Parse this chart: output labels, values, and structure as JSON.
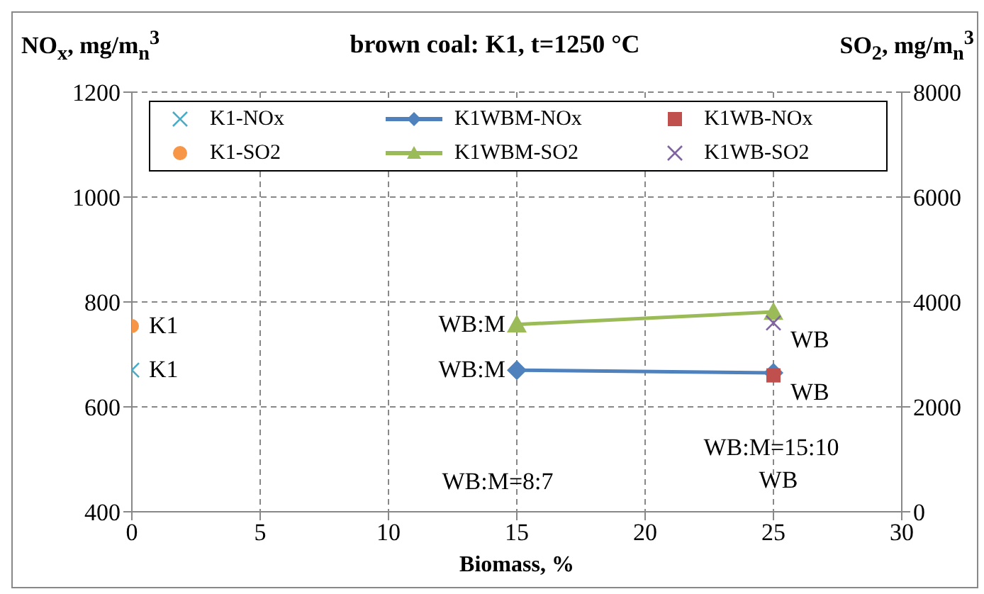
{
  "chart_data": {
    "type": "scatter",
    "title": "brown coal: K1, t=1250 °C",
    "xlabel": "Biomass, %",
    "ylabel": "NO$_{x}$, mg/m$_{n}$$^{3}$",
    "y2label": "SO$_{2}$, mg/m$_{n}$$^{3}$",
    "xlim": [
      0,
      30
    ],
    "xticks": [
      0,
      5,
      10,
      15,
      20,
      25,
      30
    ],
    "ylim": [
      400,
      1200
    ],
    "yticks": [
      400,
      600,
      800,
      1000,
      1200
    ],
    "y2lim": [
      0,
      8000
    ],
    "y2ticks": [
      0,
      2000,
      4000,
      6000,
      8000
    ],
    "grid": true,
    "legend": "top",
    "series": [
      {
        "name": "K1-NOx",
        "marker": "cross",
        "color": "#4bacc6",
        "x": [
          0
        ],
        "values": [
          670
        ]
      },
      {
        "name": "K1WBM-NOx",
        "type": "line",
        "marker": "diamond",
        "color": "#4f81bd",
        "x": [
          15,
          25
        ],
        "values": [
          670,
          665
        ]
      },
      {
        "name": "K1WB-NOx",
        "marker": "square",
        "color": "#c0504d",
        "x": [
          25
        ],
        "values": [
          660
        ]
      },
      {
        "name": "K1-SO2",
        "marker": "circle",
        "color": "#f79646",
        "axis": "y2",
        "x": [
          0
        ],
        "values": [
          3540
        ]
      },
      {
        "name": "K1WBM-SO2",
        "type": "line",
        "marker": "triangle",
        "color": "#9bbb59",
        "axis": "y2",
        "x": [
          15,
          25
        ],
        "values": [
          3570,
          3810
        ]
      },
      {
        "name": "K1WB-SO2",
        "marker": "cross",
        "color": "#8064a2",
        "axis": "y2",
        "x": [
          25
        ],
        "values": [
          3600
        ]
      }
    ],
    "annotations": [
      {
        "text": "K1",
        "x": 0,
        "y": 754
      },
      {
        "text": "K1",
        "x": 0,
        "y": 670
      },
      {
        "text": "WB:M",
        "x": 15,
        "y": 757
      },
      {
        "text": "WB:M",
        "x": 15,
        "y": 670
      },
      {
        "text": "WB",
        "x": 25,
        "y": 760
      },
      {
        "text": "WB",
        "x": 25,
        "y": 660
      },
      "WB:M=8:7",
      "WB:M=15:10",
      "WB"
    ]
  }
}
